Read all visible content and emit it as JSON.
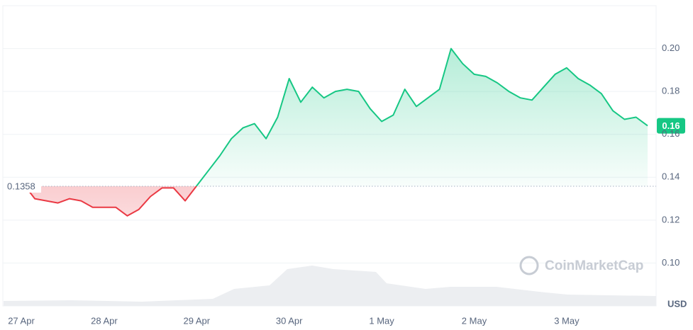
{
  "chart_data": {
    "type": "line",
    "categories": [
      "27 Apr",
      null,
      null,
      null,
      null,
      null,
      null,
      null,
      "28 Apr",
      null,
      null,
      null,
      null,
      null,
      null,
      null,
      "29 Apr",
      null,
      null,
      null,
      null,
      null,
      null,
      null,
      "30 Apr",
      null,
      null,
      null,
      null,
      null,
      null,
      null,
      "1 May",
      null,
      null,
      null,
      null,
      null,
      null,
      null,
      "2 May",
      null,
      null,
      null,
      null,
      null,
      null,
      null,
      "3 May",
      null,
      null,
      null,
      null,
      null,
      null,
      null
    ],
    "values": [
      0.138,
      0.137,
      0.13,
      0.129,
      0.128,
      0.13,
      0.129,
      0.126,
      0.126,
      0.126,
      0.122,
      0.125,
      0.131,
      0.135,
      0.135,
      0.129,
      0.136,
      0.143,
      0.15,
      0.158,
      0.163,
      0.165,
      0.158,
      0.168,
      0.186,
      0.175,
      0.182,
      0.177,
      0.18,
      0.181,
      0.18,
      0.172,
      0.166,
      0.169,
      0.181,
      0.173,
      0.177,
      0.181,
      0.2,
      0.193,
      0.188,
      0.187,
      0.184,
      0.18,
      0.177,
      0.176,
      0.182,
      0.188,
      0.191,
      0.186,
      0.183,
      0.179,
      0.171,
      0.167,
      0.168,
      0.164
    ],
    "up_color": "#16c784",
    "down_color": "#ea3943",
    "baseline": 0.1358,
    "last_label": "0.16",
    "ylim": [
      0.08,
      0.22
    ],
    "yticks": [
      {
        "value": 0.1,
        "label": "0.10"
      },
      {
        "value": 0.12,
        "label": "0.12"
      },
      {
        "value": 0.14,
        "label": "0.14"
      },
      {
        "value": 0.16,
        "label": "0.16"
      },
      {
        "value": 0.18,
        "label": "0.18"
      },
      {
        "value": 0.2,
        "label": "0.20"
      }
    ],
    "grid": true,
    "currency": "USD",
    "watermark": "CoinMarketCap"
  }
}
